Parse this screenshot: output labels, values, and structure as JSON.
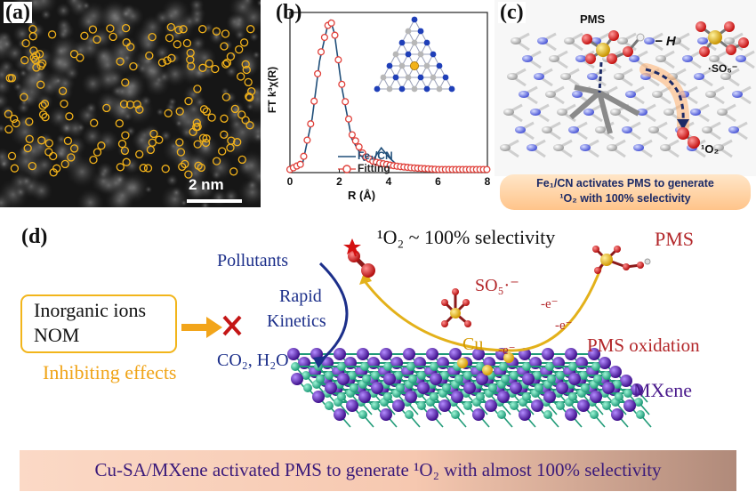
{
  "panel_a": {
    "label": "(a)",
    "scale_bar": "2 nm"
  },
  "panel_b": {
    "label": "(b)",
    "ylabel": "FT k³χ(R)",
    "xlabel": "R (Å)",
    "legend": [
      "Fe₁/CN",
      "Fitting"
    ],
    "colors": {
      "data": "#1f4e79",
      "fit": "#e0403a"
    }
  },
  "panel_c": {
    "label": "(c)",
    "pms": "PMS",
    "minus_h": "− H",
    "so5": "·SO₅⁻",
    "o2": "¹O₂",
    "caption_line1": "Fe₁/CN activates PMS to generate",
    "caption_line2": "¹O₂ with 100% selectivity"
  },
  "panel_d": {
    "label": "(d)",
    "o2_selectivity": "¹O₂ ~ 100% selectivity",
    "pms": "PMS",
    "pollutants": "Pollutants",
    "rapid": "Rapid",
    "kinetics": "Kinetics",
    "products": "CO₂, H₂O",
    "inorganic": "Inorganic ions",
    "nom": "NOM",
    "inhibiting": "Inhibiting effects",
    "so5": "SO₅·⁻",
    "e1": "-e⁻",
    "e2": "-e⁻",
    "cu": "Cu",
    "e3": "-e⁻",
    "pms_oxidation": "PMS oxidation",
    "mxene": "MXene",
    "banner": "Cu-SA/MXene activated PMS to generate ¹O₂ with almost 100% selectivity"
  },
  "chart_data": {
    "type": "line",
    "xlabel": "R (Å)",
    "ylabel": "FT k³χ(R)",
    "xlim": [
      0,
      8
    ],
    "x_ticks": [
      0,
      2,
      4,
      6,
      8
    ],
    "series": [
      {
        "name": "Fe₁/CN",
        "x": [
          0,
          0.5,
          0.9,
          1.2,
          1.5,
          1.65,
          1.8,
          2.1,
          2.5,
          3.0,
          3.4,
          3.7,
          4.0,
          4.4,
          5.0,
          6.0,
          7.0,
          8.0
        ],
        "y": [
          0.02,
          0.05,
          0.35,
          0.72,
          0.93,
          0.98,
          0.9,
          0.55,
          0.22,
          0.08,
          0.09,
          0.16,
          0.1,
          0.04,
          0.02,
          0.01,
          0.01,
          0.01
        ]
      },
      {
        "name": "Fitting",
        "x": [
          0,
          0.5,
          0.9,
          1.2,
          1.5,
          1.65,
          1.8,
          2.1,
          2.5,
          3.0,
          3.4,
          3.7,
          4.0,
          4.4,
          5.0,
          6.0,
          7.0,
          8.0
        ],
        "y": [
          0.02,
          0.06,
          0.36,
          0.74,
          0.94,
          0.98,
          0.91,
          0.57,
          0.25,
          0.11,
          0.07,
          0.06,
          0.05,
          0.04,
          0.03,
          0.02,
          0.02,
          0.02
        ]
      }
    ]
  }
}
